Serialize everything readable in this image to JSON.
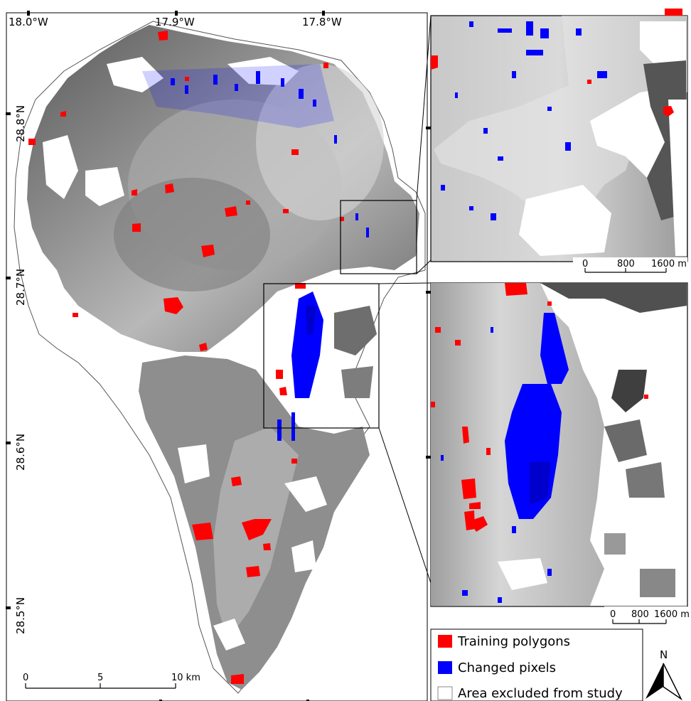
{
  "colors": {
    "training": "#ff0000",
    "changed": "#0000ff",
    "terrain_dark": "#3d3d3d",
    "terrain_mid": "#8c8c8c",
    "terrain_light": "#cfcfcf",
    "frame": "#000000",
    "background": "#ffffff"
  },
  "main_map": {
    "top_labels": [
      "18.0°W",
      "17.9°W",
      "17.8°W"
    ],
    "left_labels": [
      "28.8°N",
      "28.7°N",
      "28.6°N",
      "28.5°N"
    ],
    "scale_bar": [
      "0",
      "5",
      "10 km"
    ]
  },
  "inset_top": {
    "scale_bar": [
      "0",
      "800",
      "1600 m"
    ]
  },
  "inset_bottom": {
    "scale_bar": [
      "0",
      "800",
      "1600 m"
    ]
  },
  "legend": {
    "items": [
      {
        "label": "Training polygons",
        "color": "#ff0000"
      },
      {
        "label": "Changed pixels",
        "color": "#0000ff"
      },
      {
        "label": "Area excluded from study",
        "color": "#ffffff"
      }
    ]
  },
  "north_arrow": {
    "label": "N",
    "icon": "north-arrow-icon"
  }
}
